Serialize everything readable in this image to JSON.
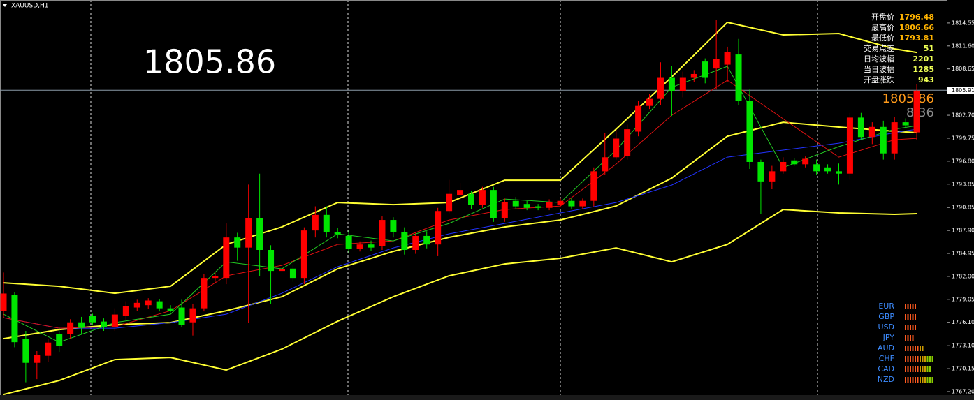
{
  "chart_data": {
    "type": "candlestick",
    "title": "XAUUSD,H1",
    "price": 1805.86,
    "change": 8.36,
    "bid": 1805.91,
    "up_color": "#ff0000",
    "down_color": "#00e600",
    "ylim": [
      1766.75,
      1817.5
    ],
    "yticks": [
      1814.55,
      {
        "value": 1811.6,
        "label": "1811.60"
      },
      1808.65,
      {
        "value": 1802.7,
        "label": "1802.70"
      },
      1799.75,
      {
        "value": 1796.8,
        "label": "1796.80"
      },
      1793.85,
      1790.85,
      {
        "value": 1787.9,
        "label": "1787.90"
      },
      1784.95,
      {
        "value": 1782.0,
        "label": "1782.00"
      },
      1779.05,
      {
        "value": 1776.1,
        "label": "1776.10"
      },
      {
        "value": 1773.1,
        "label": "1773.10"
      },
      1770.15,
      {
        "value": 1767.2,
        "label": "1767.20"
      }
    ],
    "open": [
      1777.6,
      1779.65,
      1774.0,
      1770.9,
      1771.8,
      1774.6,
      1774.6,
      1776.1,
      1776.9,
      1776.2,
      1775.5,
      1776.9,
      1778.0,
      1778.3,
      1778.8,
      1777.9,
      1778.0,
      1776.1,
      1777.9,
      1781.8,
      1781.8,
      1787.0,
      1785.7,
      1789.5,
      1785.4,
      1782.7,
      1783.0,
      1781.8,
      1787.9,
      1789.9,
      1787.7,
      1787.2,
      1785.5,
      1786.1,
      1785.9,
      1789.25,
      1787.7,
      1785.4,
      1787.2,
      1786.1,
      1790.4,
      1792.4,
      1792.6,
      1791.2,
      1793.1,
      1789.5,
      1791.7,
      1791.3,
      1791.0,
      1790.8,
      1791.2,
      1791.7,
      1791.0,
      1791.7,
      1795.5,
      1797.3,
      1797.5,
      1800.6,
      1803.9,
      1804.8,
      1807.5,
      1805.8,
      1807.5,
      1809.6,
      1808.7,
      1809.2,
      1810.5,
      1804.5,
      1796.7,
      1794.2,
      1795.5,
      1796.9,
      1796.4,
      1796.4,
      1796.0,
      1795.5,
      1795.2,
      1802.4,
      1799.9,
      1801.2,
      1797.8,
      1801.8,
      1800.5
    ],
    "high": [
      1782.5,
      1780.0,
      1775.0,
      1772.4,
      1774.0,
      1775.5,
      1776.5,
      1776.8,
      1777.2,
      1776.6,
      1777.9,
      1778.8,
      1779.0,
      1779.2,
      1779.1,
      1778.3,
      1779.0,
      1778.5,
      1782.3,
      1782.5,
      1788.8,
      1787.6,
      1793.8,
      1795.2,
      1786.0,
      1783.4,
      1783.5,
      1788.3,
      1791.0,
      1791.0,
      1788.2,
      1788.0,
      1786.5,
      1786.6,
      1789.7,
      1789.6,
      1788.3,
      1787.7,
      1787.8,
      1790.8,
      1794.4,
      1794.0,
      1793.0,
      1793.5,
      1793.5,
      1792.0,
      1792.2,
      1791.7,
      1791.3,
      1791.9,
      1792.0,
      1792.1,
      1792.0,
      1796.0,
      1800.4,
      1800.8,
      1801.5,
      1804.5,
      1805.4,
      1809.5,
      1809.0,
      1808.3,
      1808.5,
      1810.0,
      1814.9,
      1811.5,
      1812.5,
      1806.0,
      1797.0,
      1796.2,
      1797.3,
      1797.2,
      1797.4,
      1797.0,
      1796.4,
      1796.5,
      1803.0,
      1803.0,
      1801.8,
      1802.0,
      1802.5,
      1802.3,
      1806.66
    ],
    "low": [
      1776.7,
      1772.9,
      1768.4,
      1768.8,
      1771.0,
      1772.3,
      1774.0,
      1774.6,
      1775.8,
      1775.0,
      1775.0,
      1776.4,
      1777.6,
      1777.8,
      1777.5,
      1777.4,
      1775.5,
      1774.4,
      1777.5,
      1781.2,
      1781.0,
      1784.0,
      1776.0,
      1782.0,
      1778.5,
      1782.0,
      1781.3,
      1781.0,
      1787.0,
      1787.0,
      1786.9,
      1785.0,
      1785.2,
      1785.3,
      1785.4,
      1787.0,
      1784.8,
      1784.9,
      1785.6,
      1784.6,
      1790.1,
      1791.8,
      1790.6,
      1790.8,
      1789.0,
      1789.0,
      1790.6,
      1790.5,
      1790.5,
      1790.5,
      1790.9,
      1790.7,
      1790.6,
      1791.0,
      1795.0,
      1797.0,
      1797.0,
      1800.0,
      1803.5,
      1804.0,
      1802.6,
      1805.0,
      1807.0,
      1806.8,
      1806.0,
      1807.0,
      1804.0,
      1795.8,
      1790.0,
      1793.2,
      1795.2,
      1796.2,
      1796.0,
      1795.0,
      1795.2,
      1793.8,
      1794.4,
      1799.5,
      1799.0,
      1797.0,
      1797.0,
      1801.0,
      1799.5
    ],
    "close": [
      1779.8,
      1773.55,
      1770.9,
      1771.9,
      1773.5,
      1773.1,
      1776.1,
      1775.4,
      1776.1,
      1775.5,
      1777.1,
      1778.2,
      1778.6,
      1778.9,
      1777.9,
      1777.6,
      1775.8,
      1777.9,
      1781.8,
      1782.0,
      1787.0,
      1785.7,
      1789.5,
      1785.4,
      1782.7,
      1782.9,
      1781.8,
      1787.9,
      1789.9,
      1787.7,
      1787.4,
      1785.5,
      1786.1,
      1785.7,
      1789.25,
      1787.7,
      1785.4,
      1787.2,
      1786.1,
      1790.4,
      1792.6,
      1793.1,
      1791.2,
      1793.1,
      1789.5,
      1791.5,
      1791.0,
      1790.8,
      1790.8,
      1791.5,
      1791.7,
      1791.0,
      1791.7,
      1795.5,
      1797.3,
      1799.7,
      1800.9,
      1803.9,
      1804.8,
      1807.5,
      1805.8,
      1807.5,
      1808.0,
      1807.5,
      1809.9,
      1810.8,
      1804.5,
      1796.7,
      1794.2,
      1795.5,
      1796.7,
      1796.4,
      1797.1,
      1795.5,
      1795.5,
      1795.2,
      1802.4,
      1799.9,
      1801.2,
      1797.8,
      1801.8,
      1801.4,
      1805.86
    ],
    "lines": [
      {
        "color": "#ffff33",
        "x": [
          0,
          5,
          10,
          15,
          20,
          25,
          30,
          35,
          40,
          45,
          50,
          55,
          60,
          65,
          70,
          75,
          80,
          82
        ],
        "values": [
          1781.18,
          1780.73,
          1779.83,
          1780.73,
          1786.11,
          1788.35,
          1791.49,
          1791.22,
          1791.49,
          1794.36,
          1794.36,
          1800.91,
          1807.63,
          1814.63,
          1813.02,
          1813.2,
          1811.22,
          1810.77
        ]
      },
      {
        "color": "#ffff33",
        "x": [
          0,
          5,
          10,
          15,
          20,
          25,
          30,
          35,
          40,
          45,
          50,
          55,
          60,
          65,
          70,
          75,
          80,
          82
        ],
        "values": [
          1774.0,
          1775.17,
          1775.8,
          1776.07,
          1777.59,
          1779.38,
          1782.97,
          1785.21,
          1787.01,
          1788.35,
          1789.25,
          1791.04,
          1794.63,
          1800.01,
          1801.8,
          1801.18,
          1800.64,
          1800.46
        ]
      },
      {
        "color": "#ffff33",
        "x": [
          0,
          5,
          10,
          15,
          20,
          25,
          30,
          35,
          40,
          45,
          50,
          55,
          60,
          65,
          70,
          75,
          80,
          82
        ],
        "values": [
          1766.83,
          1768.62,
          1771.31,
          1771.58,
          1769.97,
          1772.66,
          1776.24,
          1779.38,
          1782.07,
          1783.6,
          1784.32,
          1785.66,
          1783.87,
          1786.11,
          1790.59,
          1790.15,
          1789.97,
          1790.06
        ]
      },
      {
        "color": "#2233ff",
        "x": [
          0,
          5,
          10,
          15,
          20,
          25,
          30,
          35,
          40,
          45,
          50,
          55,
          60,
          65,
          70,
          75,
          80,
          82
        ],
        "values": [
          1776.69,
          1775.35,
          1775.35,
          1776.07,
          1777.14,
          1779.83,
          1783.24,
          1785.66,
          1787.46,
          1788.8,
          1790.15,
          1791.49,
          1793.73,
          1797.32,
          1798.22,
          1799.11,
          1800.46,
          1800.91
        ]
      },
      {
        "color": "#dd1111",
        "x": [
          0,
          5,
          10,
          15,
          20,
          25,
          30,
          35,
          40,
          45,
          50,
          55,
          60,
          65,
          70,
          75,
          80,
          82
        ],
        "values": [
          1776.69,
          1775.35,
          1775.53,
          1777.59,
          1782.07,
          1783.42,
          1786.11,
          1786.56,
          1789.25,
          1790.59,
          1791.04,
          1796.42,
          1802.7,
          1807.19,
          1802.25,
          1797.32,
          1799.56,
          1799.74
        ]
      },
      {
        "color": "#22cc22",
        "x": [
          0,
          5,
          10,
          15,
          20,
          25,
          30,
          35,
          40,
          45,
          50,
          55,
          60,
          65,
          70,
          75,
          80,
          82
        ],
        "values": [
          1777.14,
          1773.55,
          1776.07,
          1777.14,
          1783.87,
          1782.97,
          1787.46,
          1786.56,
          1788.8,
          1791.94,
          1791.49,
          1798.22,
          1806.29,
          1808.98,
          1795.98,
          1798.67,
          1800.91,
          1801.36
        ]
      }
    ],
    "info": {
      "labels": [
        "开盘价",
        "最高价",
        "最低价",
        "交易点差",
        "日均波幅",
        "当日波幅",
        "开盘涨跌"
      ],
      "values": [
        1796.48,
        1806.66,
        1793.81,
        51,
        2201,
        1285,
        943
      ]
    },
    "currency_strength": {
      "currencies": [
        "EUR",
        "GBP",
        "USD",
        "JPY",
        "AUD",
        "CHF",
        "CAD",
        "NZD"
      ],
      "values": [
        5,
        5,
        5,
        4,
        8,
        12,
        11,
        12
      ]
    }
  }
}
